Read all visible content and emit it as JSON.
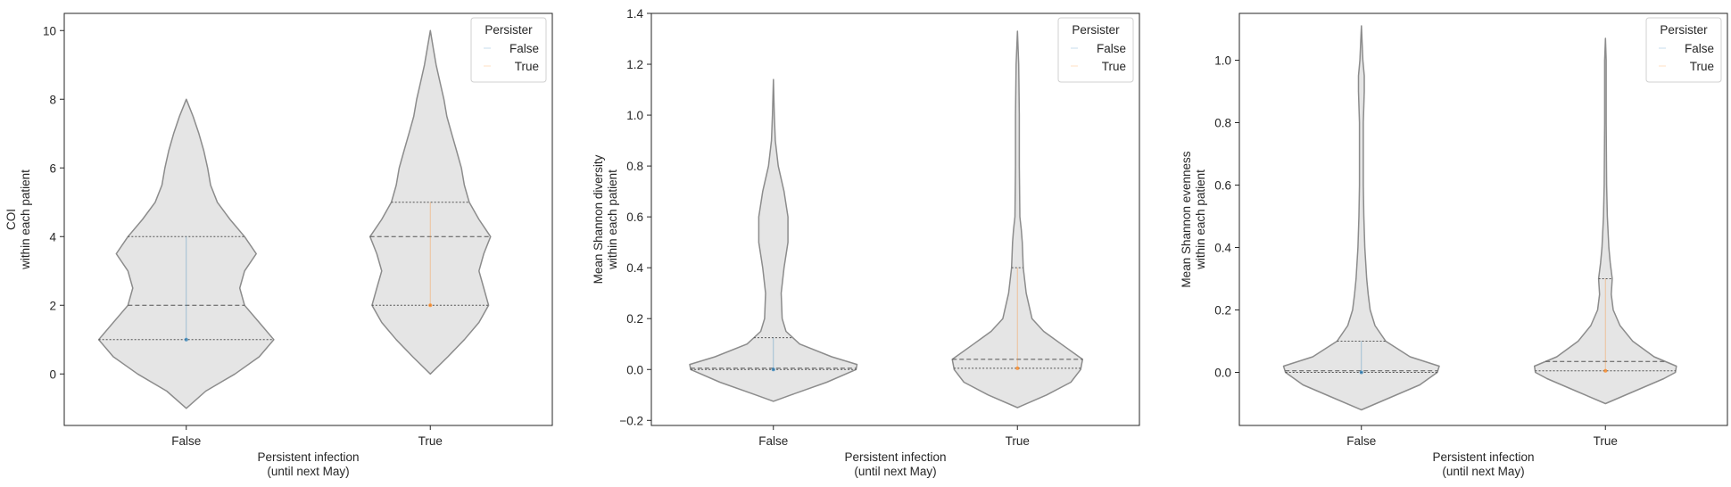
{
  "chart_data": [
    {
      "type": "violin",
      "categories": [
        "False",
        "True"
      ],
      "xlabel": [
        "Persistent infection",
        "(until next May)"
      ],
      "ylabel": [
        "COI",
        "within each patient"
      ],
      "ylim": [
        -1.5,
        10.5
      ],
      "yticks": [
        0,
        2,
        4,
        6,
        8,
        10
      ],
      "yticklabels": [
        "0",
        "2",
        "4",
        "6",
        "8",
        "10"
      ],
      "legend": {
        "title": "Persister",
        "entries": [
          "False",
          "True"
        ],
        "location": "upper right"
      },
      "violins": [
        {
          "category": "False",
          "profile": [
            [
              -1.0,
              0.0
            ],
            [
              -0.5,
              0.2
            ],
            [
              0.0,
              0.5
            ],
            [
              0.5,
              0.75
            ],
            [
              1.0,
              0.9
            ],
            [
              1.5,
              0.75
            ],
            [
              2.0,
              0.6
            ],
            [
              2.5,
              0.55
            ],
            [
              3.0,
              0.6
            ],
            [
              3.5,
              0.72
            ],
            [
              4.0,
              0.6
            ],
            [
              4.5,
              0.45
            ],
            [
              5.0,
              0.32
            ],
            [
              5.5,
              0.25
            ],
            [
              6.0,
              0.22
            ],
            [
              6.5,
              0.18
            ],
            [
              7.0,
              0.13
            ],
            [
              7.5,
              0.07
            ],
            [
              8.0,
              0.0
            ]
          ],
          "quartiles": [
            1,
            2,
            4
          ]
        },
        {
          "category": "True",
          "profile": [
            [
              0.0,
              0.0
            ],
            [
              0.5,
              0.18
            ],
            [
              1.0,
              0.35
            ],
            [
              1.5,
              0.5
            ],
            [
              2.0,
              0.6
            ],
            [
              2.5,
              0.55
            ],
            [
              3.0,
              0.5
            ],
            [
              3.5,
              0.55
            ],
            [
              4.0,
              0.62
            ],
            [
              4.5,
              0.5
            ],
            [
              5.0,
              0.4
            ],
            [
              5.5,
              0.35
            ],
            [
              6.0,
              0.32
            ],
            [
              6.5,
              0.27
            ],
            [
              7.0,
              0.22
            ],
            [
              7.5,
              0.17
            ],
            [
              8.0,
              0.14
            ],
            [
              8.5,
              0.1
            ],
            [
              9.0,
              0.06
            ],
            [
              9.5,
              0.03
            ],
            [
              10.0,
              0.0
            ]
          ],
          "quartiles": [
            2,
            4,
            5
          ]
        }
      ]
    },
    {
      "type": "violin",
      "categories": [
        "False",
        "True"
      ],
      "xlabel": [
        "Persistent infection",
        "(until next May)"
      ],
      "ylabel": [
        "Mean Shannon diversity",
        "within each patient"
      ],
      "ylim": [
        -0.22,
        1.4
      ],
      "yticks": [
        -0.2,
        0.0,
        0.2,
        0.4,
        0.6,
        0.8,
        1.0,
        1.2,
        1.4
      ],
      "yticklabels": [
        "−0.2",
        "0.0",
        "0.2",
        "0.4",
        "0.6",
        "0.8",
        "1.0",
        "1.2",
        "1.4"
      ],
      "legend": {
        "title": "Persister",
        "entries": [
          "False",
          "True"
        ],
        "location": "upper right"
      },
      "violins": [
        {
          "category": "False",
          "profile": [
            [
              -0.125,
              0.0
            ],
            [
              -0.1,
              0.18
            ],
            [
              -0.05,
              0.55
            ],
            [
              0.0,
              0.85
            ],
            [
              0.02,
              0.86
            ],
            [
              0.05,
              0.6
            ],
            [
              0.1,
              0.27
            ],
            [
              0.15,
              0.13
            ],
            [
              0.2,
              0.09
            ],
            [
              0.3,
              0.08
            ],
            [
              0.4,
              0.11
            ],
            [
              0.5,
              0.15
            ],
            [
              0.6,
              0.15
            ],
            [
              0.7,
              0.11
            ],
            [
              0.8,
              0.05
            ],
            [
              0.9,
              0.02
            ],
            [
              1.0,
              0.01
            ],
            [
              1.14,
              0.0
            ]
          ],
          "quartiles": [
            0.0,
            0.005,
            0.125
          ]
        },
        {
          "category": "True",
          "profile": [
            [
              -0.15,
              0.0
            ],
            [
              -0.1,
              0.3
            ],
            [
              -0.05,
              0.55
            ],
            [
              0.0,
              0.65
            ],
            [
              0.04,
              0.67
            ],
            [
              0.1,
              0.45
            ],
            [
              0.15,
              0.27
            ],
            [
              0.2,
              0.15
            ],
            [
              0.3,
              0.09
            ],
            [
              0.4,
              0.06
            ],
            [
              0.5,
              0.05
            ],
            [
              0.55,
              0.04
            ],
            [
              0.6,
              0.025
            ],
            [
              0.8,
              0.02
            ],
            [
              1.0,
              0.02
            ],
            [
              1.2,
              0.013
            ],
            [
              1.33,
              0.0
            ]
          ],
          "quartiles": [
            0.005,
            0.04,
            0.4
          ]
        }
      ]
    },
    {
      "type": "violin",
      "categories": [
        "False",
        "True"
      ],
      "xlabel": [
        "Persistent infection",
        "(until next May)"
      ],
      "ylabel": [
        "Mean Shannon evenness",
        "within each patient"
      ],
      "ylim": [
        -0.17,
        1.15
      ],
      "yticks": [
        0.0,
        0.2,
        0.4,
        0.6,
        0.8,
        1.0
      ],
      "yticklabels": [
        "0.0",
        "0.2",
        "0.4",
        "0.6",
        "0.8",
        "1.0"
      ],
      "legend": {
        "title": "Persister",
        "entries": [
          "False",
          "True"
        ],
        "location": "upper right"
      },
      "violins": [
        {
          "category": "False",
          "profile": [
            [
              -0.12,
              0.0
            ],
            [
              -0.08,
              0.3
            ],
            [
              -0.04,
              0.6
            ],
            [
              0.0,
              0.78
            ],
            [
              0.02,
              0.8
            ],
            [
              0.05,
              0.5
            ],
            [
              0.1,
              0.25
            ],
            [
              0.15,
              0.14
            ],
            [
              0.2,
              0.09
            ],
            [
              0.25,
              0.07
            ],
            [
              0.3,
              0.055
            ],
            [
              0.4,
              0.035
            ],
            [
              0.5,
              0.025
            ],
            [
              0.6,
              0.02
            ],
            [
              0.7,
              0.02
            ],
            [
              0.8,
              0.02
            ],
            [
              0.9,
              0.03
            ],
            [
              0.95,
              0.03
            ],
            [
              1.0,
              0.015
            ],
            [
              1.11,
              0.0
            ]
          ],
          "quartiles": [
            0.0,
            0.005,
            0.1
          ]
        },
        {
          "category": "True",
          "profile": [
            [
              -0.1,
              0.0
            ],
            [
              -0.06,
              0.3
            ],
            [
              -0.02,
              0.6
            ],
            [
              0.0,
              0.72
            ],
            [
              0.02,
              0.73
            ],
            [
              0.05,
              0.5
            ],
            [
              0.1,
              0.28
            ],
            [
              0.15,
              0.15
            ],
            [
              0.2,
              0.08
            ],
            [
              0.25,
              0.06
            ],
            [
              0.3,
              0.07
            ],
            [
              0.35,
              0.05
            ],
            [
              0.4,
              0.035
            ],
            [
              0.5,
              0.02
            ],
            [
              0.6,
              0.012
            ],
            [
              0.8,
              0.008
            ],
            [
              1.0,
              0.008
            ],
            [
              1.07,
              0.0
            ]
          ],
          "quartiles": [
            0.005,
            0.035,
            0.3
          ]
        }
      ]
    }
  ]
}
